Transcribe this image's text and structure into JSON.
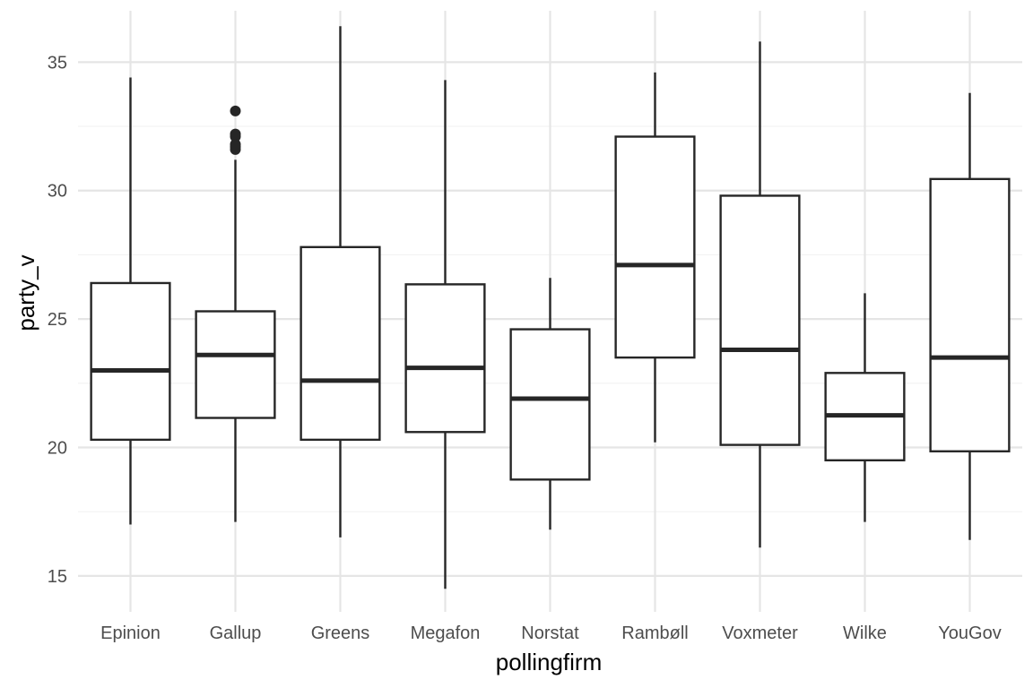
{
  "chart_data": {
    "type": "boxplot",
    "xlabel": "pollingfirm",
    "ylabel": "party_v",
    "ylim": [
      13.6,
      37.0
    ],
    "y_ticks": [
      15,
      20,
      25,
      30,
      35
    ],
    "grid": true,
    "categories": [
      "Epinion",
      "Gallup",
      "Greens",
      "Megafon",
      "Norstat",
      "Rambøll",
      "Voxmeter",
      "Wilke",
      "YouGov"
    ],
    "boxes": [
      {
        "category": "Epinion",
        "whisker_low": 17.0,
        "q1": 20.3,
        "median": 23.0,
        "q3": 26.4,
        "whisker_high": 34.4,
        "outliers": []
      },
      {
        "category": "Gallup",
        "whisker_low": 17.1,
        "q1": 21.15,
        "median": 23.6,
        "q3": 25.3,
        "whisker_high": 31.2,
        "outliers": [
          31.6,
          31.7,
          31.8,
          32.1,
          32.2,
          33.1
        ]
      },
      {
        "category": "Greens",
        "whisker_low": 16.5,
        "q1": 20.3,
        "median": 22.6,
        "q3": 27.8,
        "whisker_high": 36.4,
        "outliers": []
      },
      {
        "category": "Megafon",
        "whisker_low": 14.5,
        "q1": 20.6,
        "median": 23.1,
        "q3": 26.35,
        "whisker_high": 34.3,
        "outliers": []
      },
      {
        "category": "Norstat",
        "whisker_low": 16.8,
        "q1": 18.75,
        "median": 21.9,
        "q3": 24.6,
        "whisker_high": 26.6,
        "outliers": []
      },
      {
        "category": "Rambøll",
        "whisker_low": 20.2,
        "q1": 23.5,
        "median": 27.1,
        "q3": 32.1,
        "whisker_high": 34.6,
        "outliers": []
      },
      {
        "category": "Voxmeter",
        "whisker_low": 16.1,
        "q1": 20.1,
        "median": 23.8,
        "q3": 29.8,
        "whisker_high": 35.8,
        "outliers": []
      },
      {
        "category": "Wilke",
        "whisker_low": 17.1,
        "q1": 19.5,
        "median": 21.25,
        "q3": 22.9,
        "whisker_high": 26.0,
        "outliers": []
      },
      {
        "category": "YouGov",
        "whisker_low": 16.4,
        "q1": 19.85,
        "median": 23.5,
        "q3": 30.45,
        "whisker_high": 33.8,
        "outliers": []
      }
    ]
  },
  "colors": {
    "background": "#ffffff",
    "grid_major": "#e5e5e5",
    "grid_minor": "#f2f2f2",
    "box_line": "#262626",
    "box_fill": "#ffffff",
    "tick_text": "#4d4d4d",
    "title_text": "#000000"
  }
}
